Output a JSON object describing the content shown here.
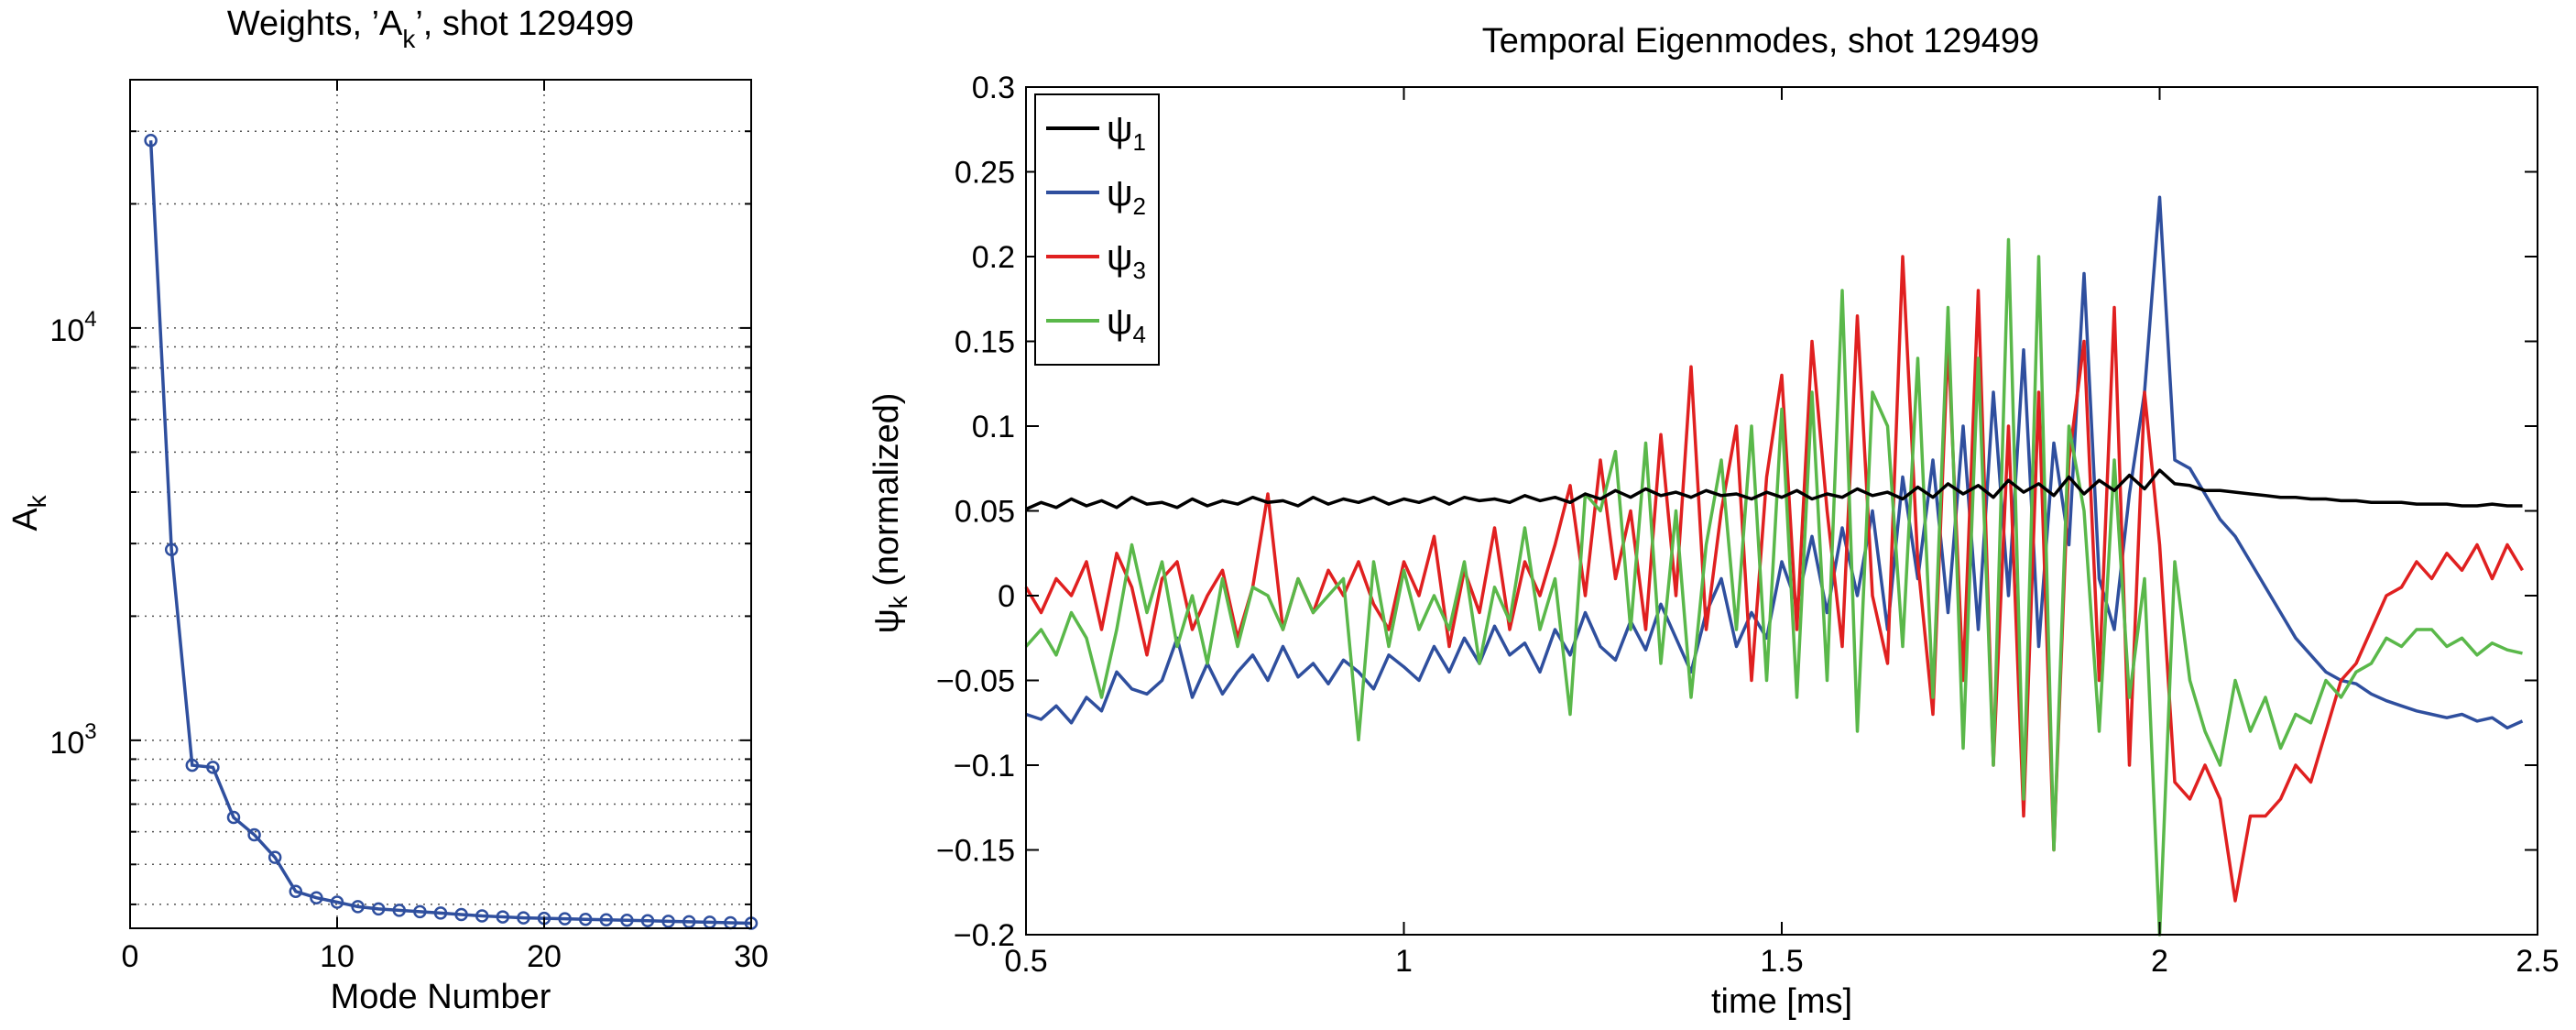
{
  "chart_data": [
    {
      "type": "line",
      "title": "Weights, ’A k’, shot 129499",
      "title_parts": {
        "pre": "Weights, ’A",
        "sub": "k",
        "post": "’, shot 129499"
      },
      "xlabel": "Mode Number",
      "ylabel": "A",
      "ylabel_sub": "k",
      "yscale": "log",
      "xlim": [
        0,
        30
      ],
      "ylim": [
        350,
        40000
      ],
      "xticks": [
        0,
        10,
        20,
        30
      ],
      "xtick_labels": [
        "0",
        "10",
        "20",
        "30"
      ],
      "yticks": [
        1000,
        10000
      ],
      "ytick_labels": [
        {
          "base": "10",
          "exp": "3"
        },
        {
          "base": "10",
          "exp": "4"
        }
      ],
      "grid": true,
      "series": [
        {
          "color": "#2f4f9e",
          "marker": "circle",
          "x": [
            1,
            2,
            3,
            4,
            5,
            6,
            7,
            8,
            9,
            10,
            11,
            12,
            13,
            14,
            15,
            16,
            17,
            18,
            19,
            20,
            21,
            22,
            23,
            24,
            25,
            26,
            27,
            28,
            29,
            30
          ],
          "y": [
            28500,
            2900,
            870,
            860,
            650,
            590,
            520,
            430,
            415,
            405,
            395,
            390,
            387,
            384,
            381,
            378,
            375,
            373,
            371,
            370,
            369,
            368,
            367,
            366,
            365,
            364,
            363,
            362,
            361,
            360
          ]
        }
      ]
    },
    {
      "type": "line",
      "title": "Temporal Eigenmodes, shot 129499",
      "xlabel": "time [ms]",
      "ylabel": "ψ",
      "ylabel_sub": "k",
      "ylabel_post": " (normalized)",
      "xlim": [
        0.5,
        2.5
      ],
      "ylim": [
        -0.2,
        0.3
      ],
      "xticks": [
        0.5,
        1,
        1.5,
        2,
        2.5
      ],
      "xtick_labels": [
        "0.5",
        "1",
        "1.5",
        "2",
        "2.5"
      ],
      "yticks": [
        -0.2,
        -0.15,
        -0.1,
        -0.05,
        0,
        0.05,
        0.1,
        0.15,
        0.2,
        0.25,
        0.3
      ],
      "ytick_labels": [
        "−0.2",
        "−0.15",
        "−0.1",
        "−0.05",
        "0",
        "0.05",
        "0.1",
        "0.15",
        "0.2",
        "0.25",
        "0.3"
      ],
      "grid": false,
      "legend_position": "top-left",
      "series": [
        {
          "name": "ψ",
          "name_sub": "1",
          "color": "#000000"
        },
        {
          "name": "ψ",
          "name_sub": "2",
          "color": "#2f4f9e"
        },
        {
          "name": "ψ",
          "name_sub": "3",
          "color": "#e02020"
        },
        {
          "name": "ψ",
          "name_sub": "4",
          "color": "#5ab84a"
        }
      ],
      "x": [
        0.5,
        0.52,
        0.54,
        0.56,
        0.58,
        0.6,
        0.62,
        0.64,
        0.66,
        0.68,
        0.7,
        0.72,
        0.74,
        0.76,
        0.78,
        0.8,
        0.82,
        0.84,
        0.86,
        0.88,
        0.9,
        0.92,
        0.94,
        0.96,
        0.98,
        1.0,
        1.02,
        1.04,
        1.06,
        1.08,
        1.1,
        1.12,
        1.14,
        1.16,
        1.18,
        1.2,
        1.22,
        1.24,
        1.26,
        1.28,
        1.3,
        1.32,
        1.34,
        1.36,
        1.38,
        1.4,
        1.42,
        1.44,
        1.46,
        1.48,
        1.5,
        1.52,
        1.54,
        1.56,
        1.58,
        1.6,
        1.62,
        1.64,
        1.66,
        1.68,
        1.7,
        1.72,
        1.74,
        1.76,
        1.78,
        1.8,
        1.82,
        1.84,
        1.86,
        1.88,
        1.9,
        1.92,
        1.94,
        1.96,
        1.98,
        2.0,
        2.02,
        2.04,
        2.06,
        2.08,
        2.1,
        2.12,
        2.14,
        2.16,
        2.18,
        2.2,
        2.22,
        2.24,
        2.26,
        2.28,
        2.3,
        2.32,
        2.34,
        2.36,
        2.38,
        2.4,
        2.42,
        2.44,
        2.46,
        2.48
      ],
      "values": [
        [
          0.051,
          0.055,
          0.052,
          0.057,
          0.053,
          0.056,
          0.052,
          0.058,
          0.054,
          0.055,
          0.052,
          0.057,
          0.053,
          0.056,
          0.054,
          0.058,
          0.055,
          0.056,
          0.053,
          0.058,
          0.054,
          0.057,
          0.055,
          0.058,
          0.054,
          0.057,
          0.055,
          0.058,
          0.054,
          0.058,
          0.056,
          0.057,
          0.055,
          0.059,
          0.056,
          0.058,
          0.055,
          0.06,
          0.057,
          0.062,
          0.058,
          0.063,
          0.059,
          0.061,
          0.058,
          0.062,
          0.059,
          0.06,
          0.057,
          0.061,
          0.058,
          0.062,
          0.057,
          0.06,
          0.058,
          0.063,
          0.059,
          0.061,
          0.057,
          0.064,
          0.058,
          0.066,
          0.06,
          0.065,
          0.058,
          0.068,
          0.061,
          0.066,
          0.059,
          0.07,
          0.06,
          0.068,
          0.062,
          0.071,
          0.063,
          0.074,
          0.066,
          0.065,
          0.062,
          0.062,
          0.061,
          0.06,
          0.059,
          0.058,
          0.058,
          0.057,
          0.057,
          0.056,
          0.056,
          0.055,
          0.055,
          0.055,
          0.054,
          0.054,
          0.054,
          0.053,
          0.053,
          0.054,
          0.053,
          0.053
        ],
        [
          -0.07,
          -0.073,
          -0.065,
          -0.075,
          -0.06,
          -0.068,
          -0.045,
          -0.055,
          -0.058,
          -0.05,
          -0.025,
          -0.06,
          -0.04,
          -0.058,
          -0.045,
          -0.035,
          -0.05,
          -0.03,
          -0.048,
          -0.04,
          -0.052,
          -0.038,
          -0.045,
          -0.055,
          -0.035,
          -0.042,
          -0.05,
          -0.03,
          -0.045,
          -0.025,
          -0.04,
          -0.018,
          -0.035,
          -0.028,
          -0.045,
          -0.02,
          -0.035,
          -0.01,
          -0.03,
          -0.038,
          -0.015,
          -0.032,
          -0.005,
          -0.025,
          -0.045,
          -0.01,
          0.01,
          -0.03,
          -0.01,
          -0.025,
          0.02,
          -0.005,
          0.035,
          -0.01,
          0.04,
          0.0,
          0.05,
          -0.02,
          0.07,
          0.01,
          0.08,
          -0.01,
          0.1,
          -0.02,
          0.12,
          0.0,
          0.145,
          -0.03,
          0.09,
          0.03,
          0.19,
          0.01,
          -0.02,
          0.06,
          0.12,
          0.235,
          0.08,
          0.075,
          0.06,
          0.045,
          0.035,
          0.02,
          0.005,
          -0.01,
          -0.025,
          -0.035,
          -0.045,
          -0.05,
          -0.052,
          -0.058,
          -0.062,
          -0.065,
          -0.068,
          -0.07,
          -0.072,
          -0.07,
          -0.074,
          -0.072,
          -0.078,
          -0.074
        ],
        [
          0.005,
          -0.01,
          0.01,
          0.0,
          0.02,
          -0.02,
          0.025,
          0.005,
          -0.035,
          0.01,
          0.02,
          -0.02,
          0.0,
          0.015,
          -0.025,
          0.005,
          0.06,
          -0.02,
          0.01,
          -0.01,
          0.015,
          0.0,
          0.02,
          -0.005,
          -0.02,
          0.02,
          0.0,
          0.035,
          -0.03,
          0.015,
          -0.01,
          0.04,
          -0.02,
          0.02,
          0.0,
          0.03,
          0.065,
          0.0,
          0.08,
          0.01,
          0.05,
          -0.02,
          0.095,
          0.0,
          0.135,
          -0.02,
          0.05,
          0.1,
          -0.05,
          0.07,
          0.13,
          -0.02,
          0.15,
          0.05,
          -0.03,
          0.165,
          0.0,
          -0.04,
          0.2,
          0.02,
          -0.07,
          0.15,
          -0.05,
          0.18,
          -0.1,
          0.1,
          -0.13,
          0.12,
          -0.15,
          0.08,
          0.15,
          -0.05,
          0.17,
          -0.1,
          0.12,
          0.03,
          -0.11,
          -0.12,
          -0.1,
          -0.12,
          -0.18,
          -0.13,
          -0.13,
          -0.12,
          -0.1,
          -0.11,
          -0.08,
          -0.05,
          -0.04,
          -0.02,
          0.0,
          0.005,
          0.02,
          0.01,
          0.025,
          0.015,
          0.03,
          0.01,
          0.03,
          0.015
        ],
        [
          -0.03,
          -0.02,
          -0.035,
          -0.01,
          -0.025,
          -0.06,
          -0.02,
          0.03,
          -0.01,
          0.02,
          -0.03,
          0.0,
          -0.04,
          0.01,
          -0.03,
          0.005,
          0.0,
          -0.02,
          0.01,
          -0.01,
          0.0,
          0.01,
          -0.085,
          0.02,
          -0.03,
          0.015,
          -0.02,
          0.0,
          -0.02,
          0.02,
          -0.04,
          0.005,
          -0.015,
          0.04,
          -0.02,
          0.01,
          -0.07,
          0.06,
          0.05,
          0.085,
          -0.02,
          0.09,
          -0.04,
          0.05,
          -0.06,
          0.03,
          0.08,
          -0.02,
          0.1,
          -0.05,
          0.11,
          -0.06,
          0.12,
          -0.05,
          0.18,
          -0.08,
          0.12,
          0.1,
          -0.03,
          0.14,
          -0.06,
          0.17,
          -0.09,
          0.14,
          -0.1,
          0.21,
          -0.12,
          0.2,
          -0.15,
          0.1,
          0.05,
          -0.08,
          0.08,
          -0.06,
          0.01,
          -0.2,
          0.02,
          -0.05,
          -0.08,
          -0.1,
          -0.05,
          -0.08,
          -0.06,
          -0.09,
          -0.07,
          -0.075,
          -0.05,
          -0.06,
          -0.045,
          -0.04,
          -0.025,
          -0.03,
          -0.02,
          -0.02,
          -0.03,
          -0.025,
          -0.035,
          -0.028,
          -0.032,
          -0.034
        ]
      ]
    }
  ]
}
